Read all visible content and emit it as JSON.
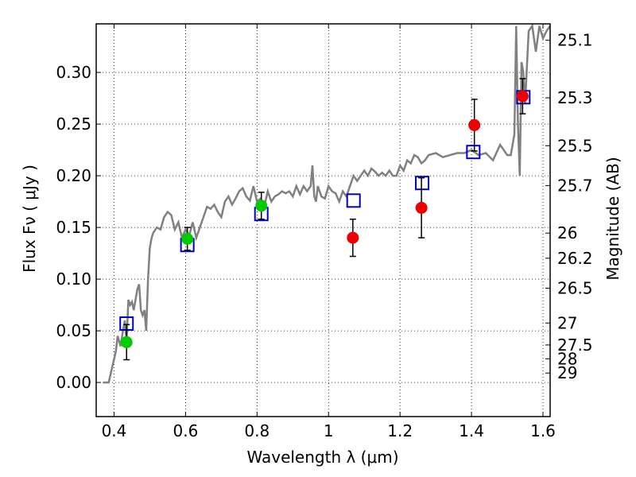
{
  "chart_data": {
    "type": "scatter",
    "xlabel": "Wavelength  λ (μm)",
    "ylabel_left": "Flux  Fν  ( μJy )",
    "ylabel_right": "Magnitude (AB)",
    "xlim": [
      0.35,
      1.62
    ],
    "ylim": [
      -0.033,
      0.347
    ],
    "grid": true,
    "x_ticks": [
      0.4,
      0.6,
      0.8,
      1.0,
      1.2,
      1.4,
      1.6
    ],
    "x_tick_labels": [
      "0.4",
      "0.6",
      "0.8",
      "1",
      "1.2",
      "1.4",
      "1.6"
    ],
    "y_ticks": [
      0.0,
      0.05,
      0.1,
      0.15,
      0.2,
      0.25,
      0.3
    ],
    "y_tick_labels": [
      "0.00",
      "0.05",
      "0.10",
      "0.15",
      "0.20",
      "0.25",
      "0.30"
    ],
    "right_ticks": [
      {
        "mag": 25.1,
        "label": "25.1"
      },
      {
        "mag": 25.3,
        "label": "25.3"
      },
      {
        "mag": 25.5,
        "label": "25.5"
      },
      {
        "mag": 25.7,
        "label": "25.7"
      },
      {
        "mag": 26.0,
        "label": "26"
      },
      {
        "mag": 26.2,
        "label": "26.2"
      },
      {
        "mag": 26.5,
        "label": "26.5"
      },
      {
        "mag": 27.0,
        "label": "27"
      },
      {
        "mag": 27.5,
        "label": "27.5"
      },
      {
        "mag": 28.0,
        "label": "28"
      },
      {
        "mag": 29.0,
        "label": "29"
      }
    ],
    "series": [
      {
        "kind": "line",
        "color": "#808080",
        "x": [
          0.37,
          0.385,
          0.395,
          0.405,
          0.41,
          0.418,
          0.425,
          0.43,
          0.435,
          0.44,
          0.445,
          0.45,
          0.455,
          0.46,
          0.465,
          0.47,
          0.475,
          0.48,
          0.485,
          0.49,
          0.495,
          0.5,
          0.505,
          0.51,
          0.52,
          0.53,
          0.54,
          0.55,
          0.56,
          0.57,
          0.58,
          0.59,
          0.6,
          0.61,
          0.62,
          0.63,
          0.64,
          0.65,
          0.66,
          0.67,
          0.68,
          0.69,
          0.7,
          0.71,
          0.72,
          0.73,
          0.74,
          0.75,
          0.76,
          0.77,
          0.78,
          0.79,
          0.8,
          0.81,
          0.82,
          0.83,
          0.84,
          0.85,
          0.86,
          0.87,
          0.88,
          0.89,
          0.9,
          0.91,
          0.92,
          0.93,
          0.94,
          0.95,
          0.955,
          0.96,
          0.965,
          0.97,
          0.98,
          0.99,
          1.0,
          1.01,
          1.02,
          1.03,
          1.04,
          1.05,
          1.06,
          1.07,
          1.08,
          1.09,
          1.1,
          1.11,
          1.12,
          1.13,
          1.14,
          1.15,
          1.16,
          1.17,
          1.18,
          1.19,
          1.2,
          1.21,
          1.22,
          1.23,
          1.24,
          1.25,
          1.26,
          1.27,
          1.28,
          1.3,
          1.32,
          1.34,
          1.36,
          1.38,
          1.4,
          1.42,
          1.44,
          1.46,
          1.48,
          1.5,
          1.51,
          1.52,
          1.525,
          1.53,
          1.535,
          1.54,
          1.545,
          1.55,
          1.56,
          1.57,
          1.58,
          1.59,
          1.6,
          1.61,
          1.62
        ],
        "y": [
          0.0,
          0.0,
          0.015,
          0.03,
          0.045,
          0.035,
          0.05,
          0.06,
          0.04,
          0.08,
          0.075,
          0.078,
          0.07,
          0.08,
          0.09,
          0.095,
          0.07,
          0.065,
          0.07,
          0.05,
          0.1,
          0.13,
          0.14,
          0.145,
          0.15,
          0.148,
          0.16,
          0.165,
          0.162,
          0.148,
          0.155,
          0.14,
          0.148,
          0.142,
          0.155,
          0.14,
          0.15,
          0.16,
          0.17,
          0.168,
          0.172,
          0.165,
          0.16,
          0.175,
          0.18,
          0.172,
          0.178,
          0.185,
          0.188,
          0.18,
          0.176,
          0.19,
          0.175,
          0.178,
          0.17,
          0.185,
          0.175,
          0.18,
          0.182,
          0.185,
          0.183,
          0.185,
          0.18,
          0.19,
          0.182,
          0.19,
          0.185,
          0.19,
          0.21,
          0.18,
          0.175,
          0.19,
          0.18,
          0.178,
          0.19,
          0.185,
          0.183,
          0.175,
          0.185,
          0.18,
          0.19,
          0.2,
          0.195,
          0.2,
          0.205,
          0.2,
          0.207,
          0.204,
          0.2,
          0.203,
          0.2,
          0.205,
          0.2,
          0.2,
          0.21,
          0.205,
          0.215,
          0.212,
          0.22,
          0.218,
          0.212,
          0.215,
          0.22,
          0.222,
          0.218,
          0.22,
          0.222,
          0.222,
          0.225,
          0.22,
          0.222,
          0.215,
          0.23,
          0.22,
          0.22,
          0.24,
          0.345,
          0.25,
          0.2,
          0.31,
          0.3,
          0.27,
          0.34,
          0.345,
          0.32,
          0.345,
          0.333,
          0.34,
          0.345
        ]
      },
      {
        "kind": "squares",
        "color": "#0000cc",
        "x": [
          0.435,
          0.605,
          0.812,
          1.07,
          1.262,
          1.405,
          1.545
        ],
        "y": [
          0.057,
          0.133,
          0.163,
          0.176,
          0.193,
          0.223,
          0.276
        ]
      },
      {
        "kind": "points",
        "color": "#00cc00",
        "x": [
          0.435,
          0.605,
          0.812
        ],
        "y": [
          0.039,
          0.139,
          0.171
        ],
        "yerr": [
          0.017,
          0.011,
          0.013
        ]
      },
      {
        "kind": "points",
        "color": "#ee0000",
        "x": [
          1.068,
          1.26,
          1.408,
          1.543
        ],
        "y": [
          0.14,
          0.169,
          0.249,
          0.277
        ],
        "yerr": [
          0.018,
          0.029,
          0.025,
          0.017
        ]
      }
    ]
  }
}
